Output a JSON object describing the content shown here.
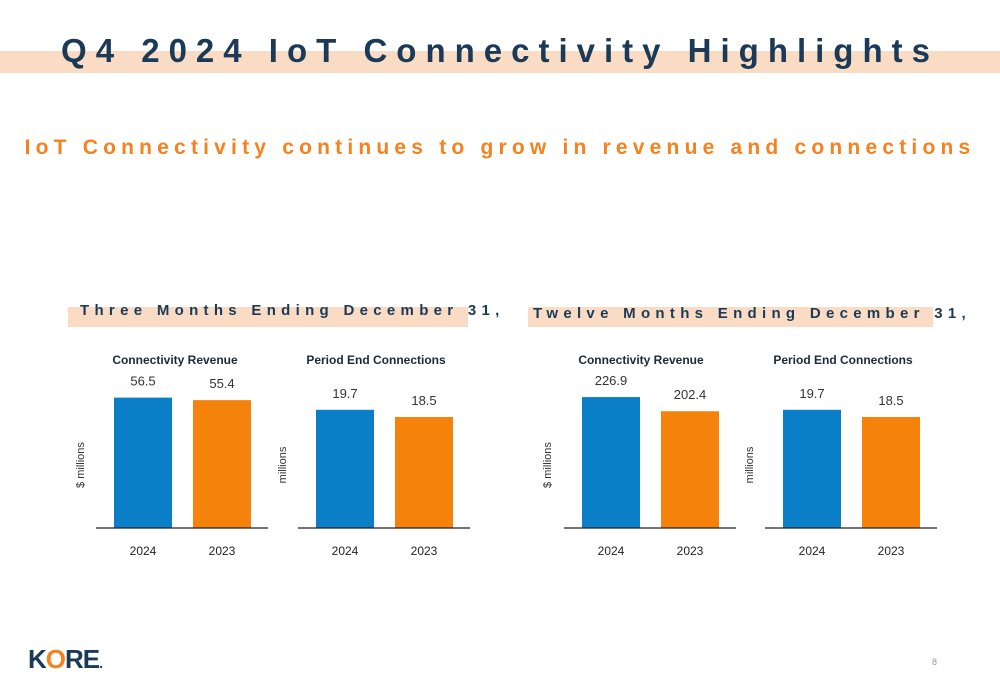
{
  "slide": {
    "title": "Q4 2024 IoT Connectivity Highlights",
    "subtitle": "IoT Connectivity continues to grow in revenue and connections",
    "page_number": "8",
    "logo_text": {
      "k": "K",
      "o": "O",
      "re": "RE",
      "dot": "."
    }
  },
  "sections": [
    {
      "title": "Three Months Ending December 31,"
    },
    {
      "title": "Twelve Months Ending December 31,"
    }
  ],
  "colors": {
    "series_2024": "#0a7fc8",
    "series_2023": "#f5820a",
    "title": "#1b3a57",
    "accent": "#f5821f",
    "band": "#fadcc4"
  },
  "chart_data": [
    {
      "type": "bar",
      "title": "Connectivity Revenue",
      "ylabel": "$ millions",
      "categories": [
        "2024",
        "2023"
      ],
      "values": [
        56.5,
        55.4
      ],
      "data_labels": [
        "56.5",
        "55.4"
      ],
      "ylim": [
        0,
        65
      ]
    },
    {
      "type": "bar",
      "title": "Period End Connections",
      "ylabel": "millions",
      "categories": [
        "2024",
        "2023"
      ],
      "values": [
        19.7,
        18.5
      ],
      "data_labels": [
        "19.7",
        "18.5"
      ],
      "ylim": [
        0,
        25
      ]
    },
    {
      "type": "bar",
      "title": "Connectivity Revenue",
      "ylabel": "$ millions",
      "categories": [
        "2024",
        "2023"
      ],
      "values": [
        226.9,
        202.4
      ],
      "data_labels": [
        "226.9",
        "202.4"
      ],
      "ylim": [
        0,
        260
      ]
    },
    {
      "type": "bar",
      "title": "Period End Connections",
      "ylabel": "millions",
      "categories": [
        "2024",
        "2023"
      ],
      "values": [
        19.7,
        18.5
      ],
      "data_labels": [
        "19.7",
        "18.5"
      ],
      "ylim": [
        0,
        25
      ]
    }
  ]
}
